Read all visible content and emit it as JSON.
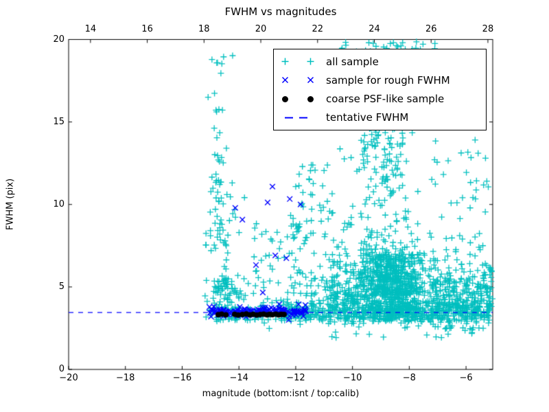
{
  "chart_data": {
    "type": "scatter",
    "title": "FWHM vs magnitudes",
    "xlabel": "magnitude (bottom:isnt / top:calib)",
    "ylabel": "FWHM (pix)",
    "xlim": [
      -20,
      -5.06
    ],
    "ylim": [
      0,
      20
    ],
    "bottom_ticks": [
      -20,
      -18,
      -16,
      -14,
      -12,
      -10,
      -8,
      -6
    ],
    "top_ticks": [
      14,
      16,
      18,
      20,
      22,
      24,
      26,
      28
    ],
    "top_axis_offset": 33.23,
    "y_ticks": [
      0,
      5,
      10,
      15,
      20
    ],
    "grid": false,
    "legend_position": "upper right",
    "tentative_fwhm": 3.45,
    "colors": {
      "all_sample": "#00bfbf",
      "rough_fwhm": "#0000ff",
      "coarse_psf": "#000000",
      "tentative_line": "#0000ff",
      "axes": "#000000"
    },
    "legend_items": [
      {
        "label": "all sample",
        "marker": "plus",
        "color": "#00bfbf"
      },
      {
        "label": "sample for rough FWHM",
        "marker": "x",
        "color": "#0000ff"
      },
      {
        "label": "coarse PSF-like sample",
        "marker": "dot",
        "color": "#000000"
      },
      {
        "label": "tentative FWHM",
        "marker": "dashed-line",
        "color": "#0000ff"
      }
    ],
    "series": [
      {
        "name": "all sample",
        "marker": "plus",
        "color": "#00bfbf",
        "seed": 7,
        "clusters": [
          {
            "count": 25,
            "x": [
              "n",
              -14.72,
              0.18
            ],
            "y": [
              "u",
              11.5,
              19.2
            ]
          },
          {
            "count": 60,
            "x": [
              "n",
              -14.65,
              0.33
            ],
            "y": [
              "u",
              5.0,
              11.5
            ]
          },
          {
            "count": 95,
            "x": [
              "n",
              -14.35,
              0.5,
              -15.2,
              -12.9
            ],
            "y": [
              "u",
              2.9,
              5.5
            ]
          },
          {
            "count": 55,
            "x": [
              "u",
              -13.6,
              -11.5
            ],
            "y": [
              "u",
              3.2,
              9.0
            ]
          },
          {
            "count": 28,
            "x": [
              "u",
              -12.1,
              -10.7
            ],
            "y": [
              "u",
              8.0,
              12.6
            ]
          },
          {
            "count": 80,
            "x": [
              "u",
              -15.05,
              -11.6
            ],
            "y": [
              "n",
              3.45,
              0.3
            ]
          },
          {
            "count": 500,
            "x": [
              "u",
              -12.6,
              -5.1
            ],
            "y": [
              "n",
              3.45,
              0.28
            ]
          },
          {
            "count": 130,
            "x": [
              "u",
              -12.3,
              -5.15
            ],
            "y": [
              "e",
              3.6,
              0.9,
              7.0
            ]
          },
          {
            "count": 480,
            "x": [
              "n",
              -8.6,
              0.55
            ],
            "y": [
              "u",
              2.9,
              7.0
            ]
          },
          {
            "count": 300,
            "x": [
              "n",
              -8.55,
              0.65
            ],
            "y": [
              "e",
              4.5,
              1.8,
              10.5
            ]
          },
          {
            "count": 110,
            "x": [
              "n",
              -8.85,
              0.45
            ],
            "y": [
              "u",
              10.0,
              16.0
            ]
          },
          {
            "count": 32,
            "x": [
              "u",
              -9.4,
              -8.1
            ],
            "y": [
              "u",
              16.0,
              19.3
            ]
          },
          {
            "count": 30,
            "x": [
              "u",
              -10.4,
              -6.9
            ],
            "y": [
              "u",
              19.2,
              19.9
            ]
          },
          {
            "count": 26,
            "x": [
              "u",
              -10.6,
              -9.1
            ],
            "y": [
              "u",
              12.0,
              17.0
            ]
          },
          {
            "count": 150,
            "x": [
              "u",
              -10.8,
              -9.3
            ],
            "y": [
              "e",
              3.7,
              2.2,
              10.0
            ]
          },
          {
            "count": 45,
            "x": [
              "u",
              -12.2,
              -10.8
            ],
            "y": [
              "u",
              4.0,
              12.0
            ]
          },
          {
            "count": 260,
            "x": [
              "u",
              -7.35,
              -5.07
            ],
            "y": [
              "n",
              4.3,
              1.1,
              2.4,
              7.4
            ]
          },
          {
            "count": 40,
            "x": [
              "u",
              -7.5,
              -5.2
            ],
            "y": [
              "u",
              7.0,
              14.0
            ]
          },
          {
            "count": 32,
            "x": [
              "u",
              -10.9,
              -5.3
            ],
            "y": [
              "u",
              1.9,
              2.9
            ]
          }
        ]
      },
      {
        "name": "sample for rough FWHM",
        "marker": "x",
        "color": "#0000ff",
        "seed": 13,
        "clusters": [
          {
            "count": 140,
            "x": [
              "u",
              -15.05,
              -11.62
            ],
            "y": [
              "n",
              3.48,
              0.13
            ]
          }
        ],
        "points": [
          [
            -12.82,
            11.08
          ],
          [
            -12.99,
            10.12
          ],
          [
            -12.21,
            10.33
          ],
          [
            -11.83,
            10.0
          ],
          [
            -14.13,
            9.79
          ],
          [
            -13.88,
            9.08
          ],
          [
            -12.72,
            6.91
          ],
          [
            -12.33,
            6.74
          ],
          [
            -13.4,
            6.33
          ],
          [
            -13.16,
            4.66
          ],
          [
            -12.58,
            3.95
          ],
          [
            -11.9,
            3.95
          ],
          [
            -15.04,
            3.79
          ],
          [
            -11.66,
            3.9
          ]
        ]
      },
      {
        "name": "coarse PSF-like sample",
        "marker": "dot",
        "color": "#000000",
        "points": [
          [
            -14.73,
            3.32
          ],
          [
            -14.61,
            3.35
          ],
          [
            -14.46,
            3.31
          ],
          [
            -14.15,
            3.34
          ],
          [
            -14.03,
            3.3
          ],
          [
            -13.88,
            3.33
          ],
          [
            -13.74,
            3.36
          ],
          [
            -13.62,
            3.31
          ],
          [
            -13.5,
            3.34
          ],
          [
            -13.37,
            3.3
          ],
          [
            -13.25,
            3.33
          ],
          [
            -13.13,
            3.35
          ],
          [
            -13.01,
            3.31
          ],
          [
            -12.92,
            3.34
          ],
          [
            -12.82,
            3.32
          ],
          [
            -12.7,
            3.35
          ],
          [
            -12.6,
            3.31
          ],
          [
            -12.51,
            3.34
          ],
          [
            -12.41,
            3.33
          ]
        ]
      },
      {
        "name": "tentative FWHM",
        "marker": "dashed-line",
        "color": "#0000ff",
        "y_value": 3.45
      }
    ]
  }
}
